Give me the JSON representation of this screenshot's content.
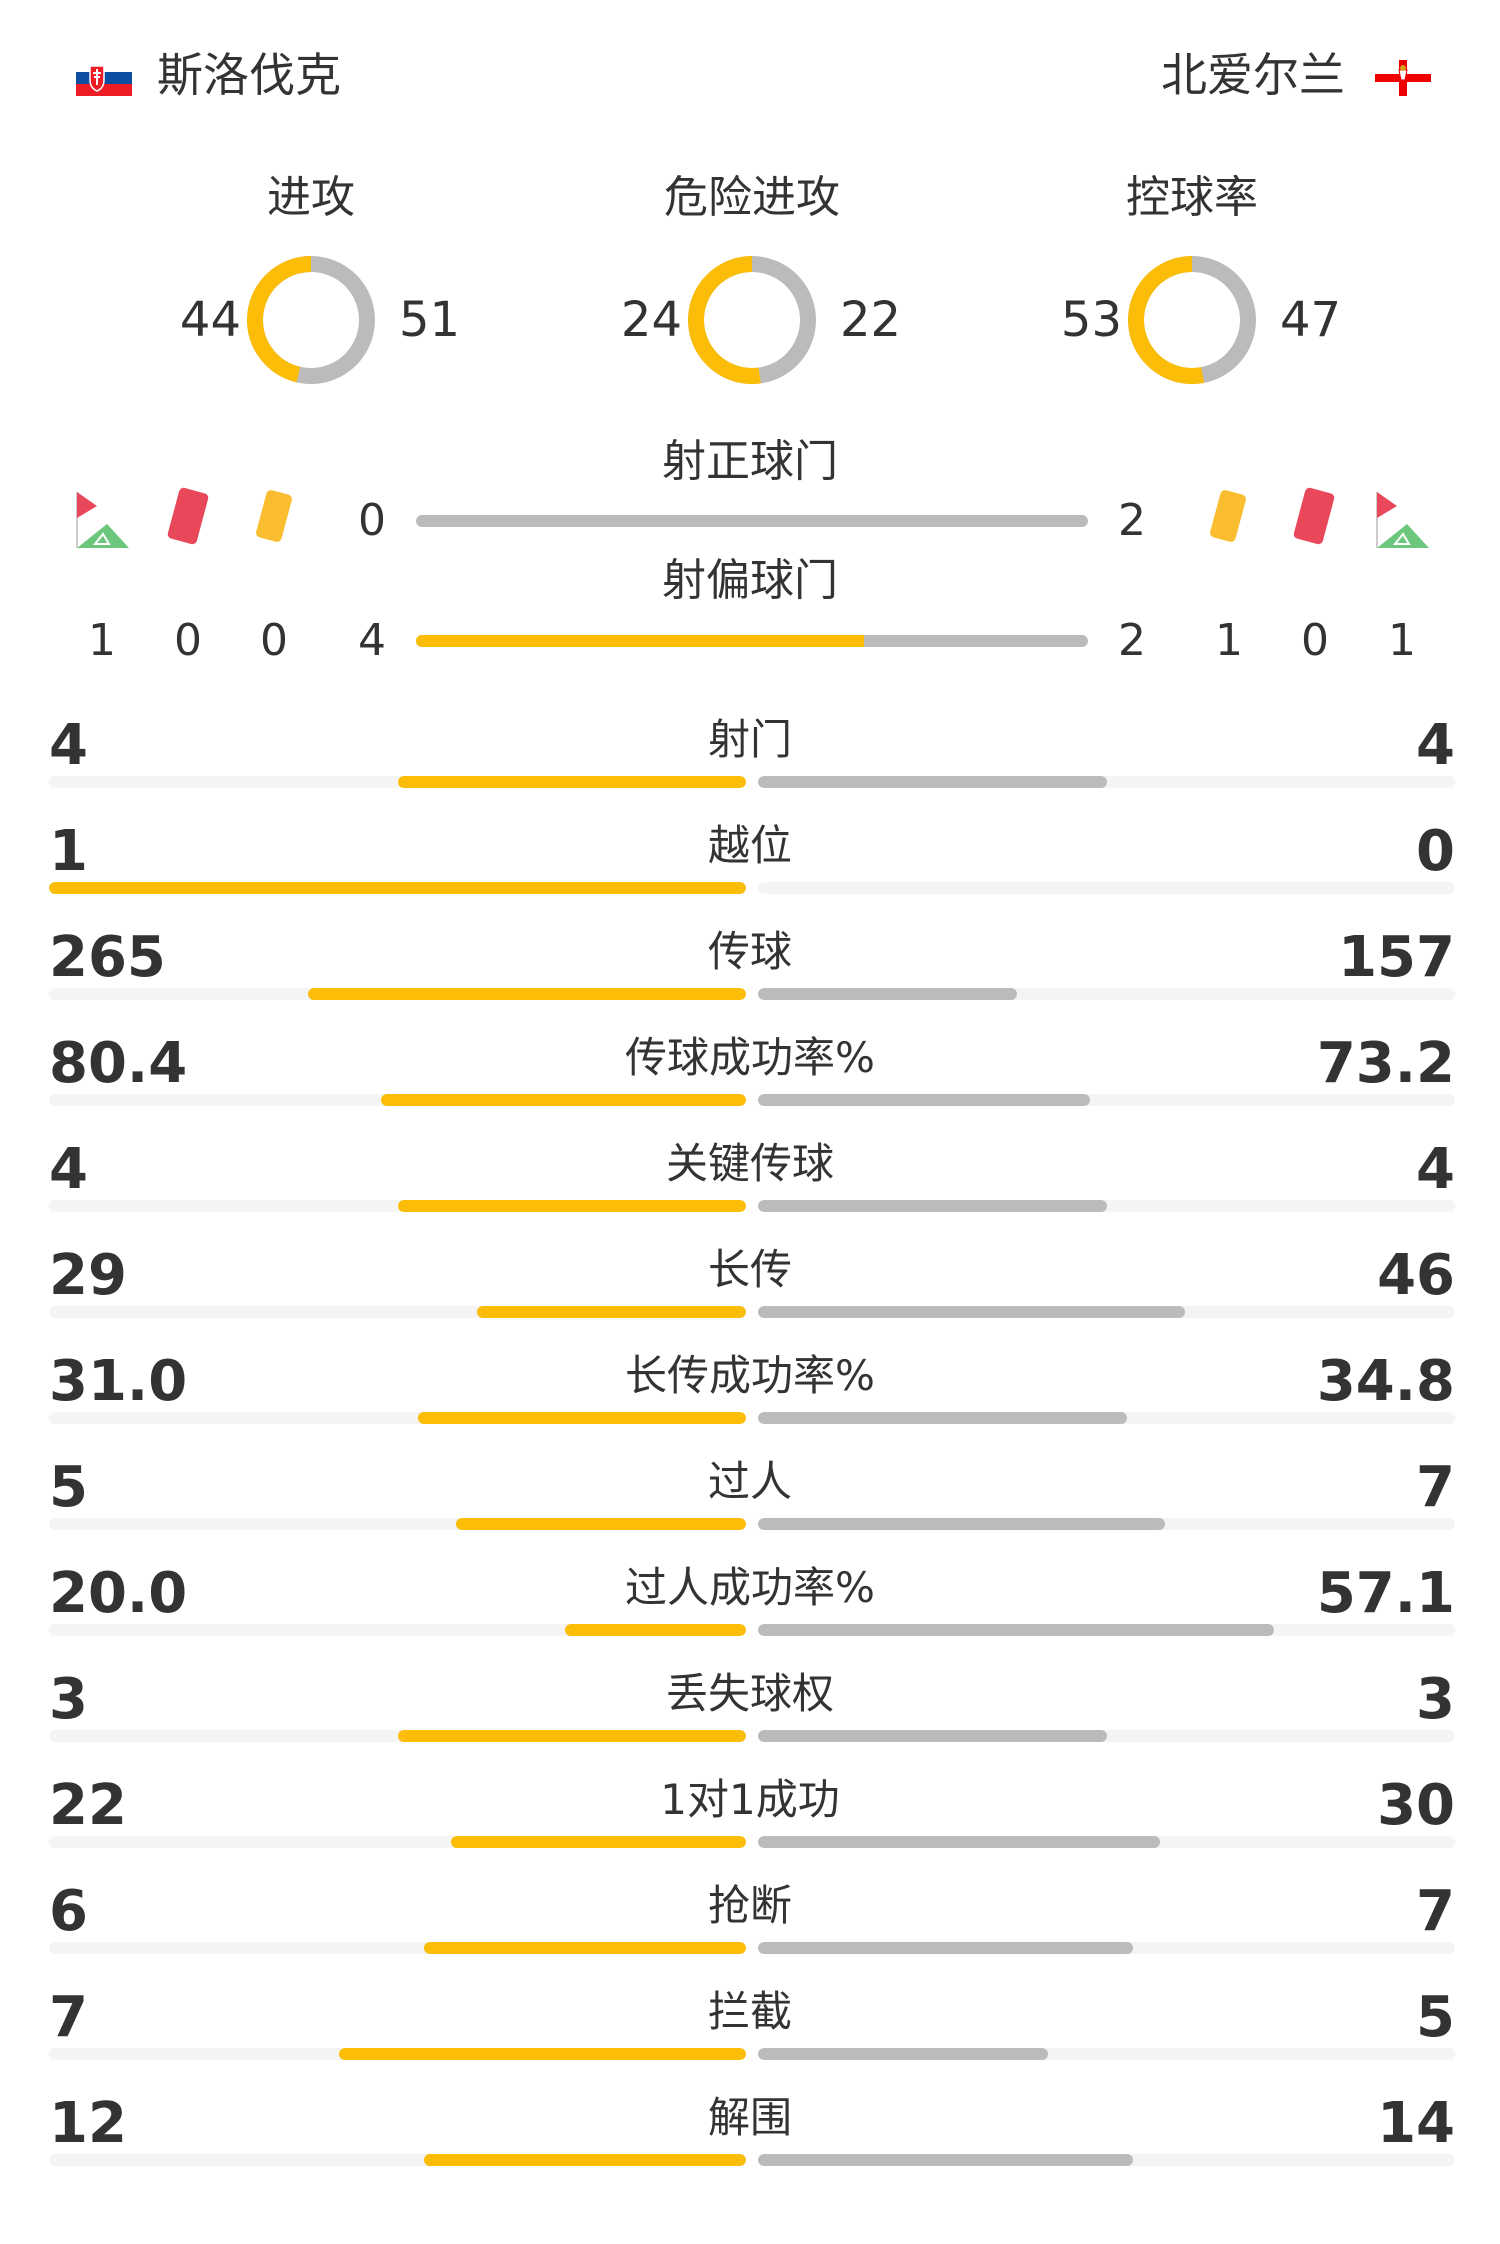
{
  "home": {
    "name": "斯洛伐克",
    "flag": "slovakia-flag"
  },
  "away": {
    "name": "北爱尔兰",
    "flag": "northern-ireland-flag"
  },
  "colors": {
    "home": "#fbbd08",
    "away": "#bbbbbb",
    "track": "#f4f4f4"
  },
  "donuts": [
    {
      "title": "进攻",
      "home": 44,
      "away": 51
    },
    {
      "title": "危险进攻",
      "home": 24,
      "away": 22
    },
    {
      "title": "控球率",
      "home": 53,
      "away": 47
    }
  ],
  "shots_on": {
    "label": "射正球门",
    "home": 0,
    "away": 2
  },
  "shots_off": {
    "label": "射偏球门",
    "home": 4,
    "away": 2
  },
  "home_counts": {
    "corners": 1,
    "red": 0,
    "yellow": 0
  },
  "away_counts": {
    "yellow": 1,
    "red": 0,
    "corners": 1
  },
  "stats": [
    {
      "label": "射门",
      "home": "4",
      "away": "4"
    },
    {
      "label": "越位",
      "home": "1",
      "away": "0"
    },
    {
      "label": "传球",
      "home": "265",
      "away": "157"
    },
    {
      "label": "传球成功率%",
      "home": "80.4",
      "away": "73.2"
    },
    {
      "label": "关键传球",
      "home": "4",
      "away": "4"
    },
    {
      "label": "长传",
      "home": "29",
      "away": "46"
    },
    {
      "label": "长传成功率%",
      "home": "31.0",
      "away": "34.8"
    },
    {
      "label": "过人",
      "home": "5",
      "away": "7"
    },
    {
      "label": "过人成功率%",
      "home": "20.0",
      "away": "57.1"
    },
    {
      "label": "丢失球权",
      "home": "3",
      "away": "3"
    },
    {
      "label": "1对1成功",
      "home": "22",
      "away": "30"
    },
    {
      "label": "抢断",
      "home": "6",
      "away": "7"
    },
    {
      "label": "拦截",
      "home": "7",
      "away": "5"
    },
    {
      "label": "解围",
      "home": "12",
      "away": "14"
    }
  ]
}
